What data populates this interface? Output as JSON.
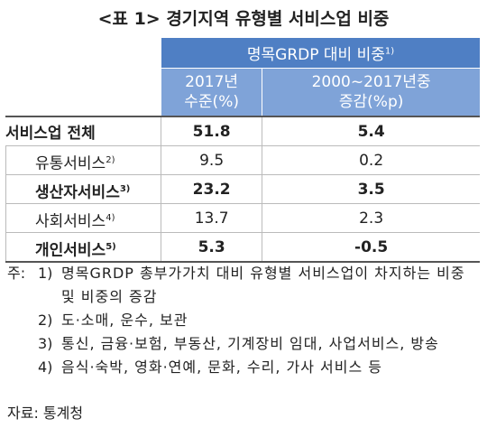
{
  "title": "<표 1> 경기지역 유형별 서비스업 비중",
  "table": {
    "header_group": {
      "text": "명목GRDP 대비 비중",
      "note": "1)"
    },
    "columns": [
      [
        "2017년",
        "수준(%)"
      ],
      [
        "2000~2017년중",
        "증감(%p)"
      ]
    ],
    "rows": [
      {
        "label": "서비스업 전체",
        "note": null,
        "values": [
          51.8,
          5.4
        ]
      },
      {
        "label": "유통서비스",
        "note": "2)",
        "values": [
          9.5,
          0.2
        ]
      },
      {
        "label": "생산자서비스",
        "note": "3)",
        "values": [
          23.2,
          3.5
        ]
      },
      {
        "label": "사회서비스",
        "note": "4)",
        "values": [
          13.7,
          2.3
        ]
      },
      {
        "label": "개인서비스",
        "note": "5)",
        "values": [
          5.3,
          -0.5
        ]
      }
    ]
  },
  "notes": {
    "prefix": "주:",
    "items": [
      {
        "num": "1)",
        "text": "명목GRDP 총부가가치 대비 유형별 서비스업이 차지하는 비중 및 비중의 증감"
      },
      {
        "num": "2)",
        "text": "도·소매, 운수, 보관"
      },
      {
        "num": "3)",
        "text": "통신, 금융·보험, 부동산, 기계장비 임대, 사업서비스, 방송"
      },
      {
        "num": "4)",
        "text": "음식·숙박, 영화·연예, 문화, 수리, 가사 서비스 등"
      }
    ]
  },
  "source": "자료: 통계청"
}
